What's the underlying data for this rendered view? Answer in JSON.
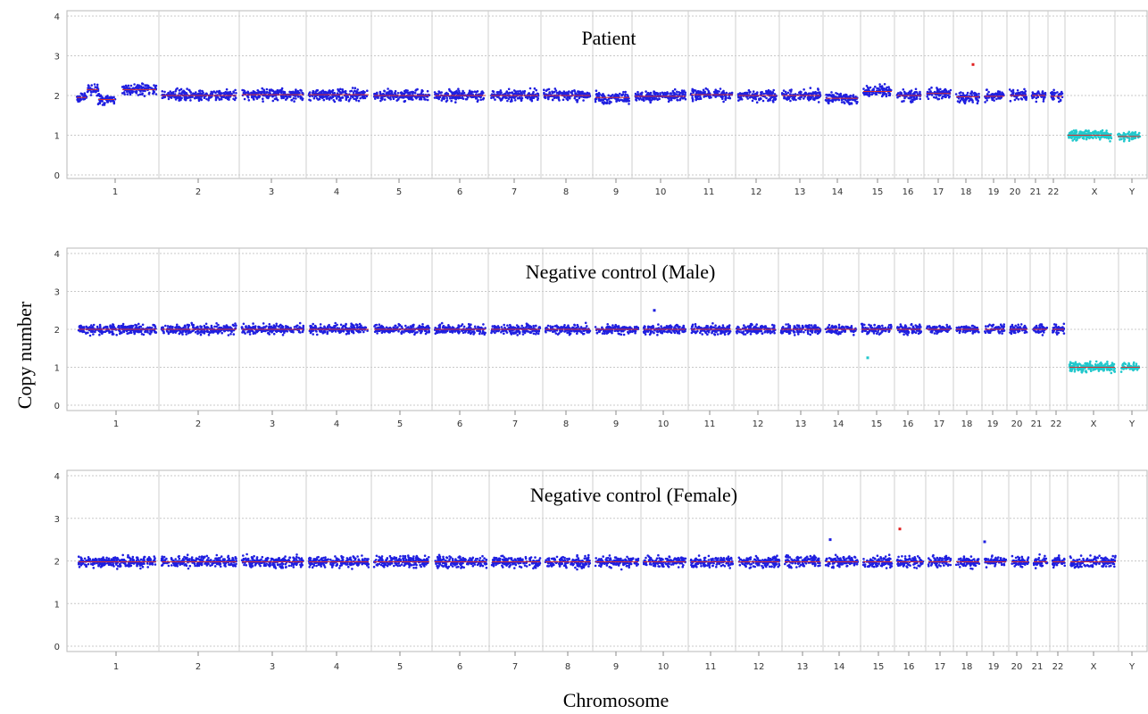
{
  "figure": {
    "ylabel": "Copy number",
    "xlabel": "Chromosome"
  },
  "chart_data": [
    {
      "type": "scatter",
      "title": "Patient",
      "ylim": [
        0,
        4
      ],
      "y_ticks": [
        "0",
        "1",
        "2",
        "3",
        "4"
      ],
      "x_tick_labels": [
        "1",
        "2",
        "3",
        "4",
        "5",
        "6",
        "7",
        "8",
        "9",
        "10",
        "11",
        "12",
        "13",
        "14",
        "15",
        "16",
        "17",
        "18",
        "19",
        "20",
        "21",
        "22",
        "X",
        "Y"
      ],
      "grid": true,
      "series": [
        {
          "color": "#1f1fe0",
          "marker": "dot",
          "segments": [
            {
              "chr": "1",
              "from": 0.0,
              "to": 0.5,
              "y": 1.95
            },
            {
              "chr": "1",
              "from": 0.5,
              "to": 0.62,
              "y": 2.15
            },
            {
              "chr": "1",
              "from": 0.62,
              "to": 1.0,
              "y": 1.9
            },
            {
              "chr": "1",
              "from": 1.0,
              "to": 1.0,
              "y": 1.95
            },
            {
              "chr": "2",
              "y": 2.15
            },
            {
              "chr": "3",
              "y": 2.02
            },
            {
              "chr": "4",
              "y": 2.02
            },
            {
              "chr": "5",
              "y": 2.02
            },
            {
              "chr": "6",
              "y": 2.0
            },
            {
              "chr": "7",
              "y": 2.0
            },
            {
              "chr": "8",
              "y": 2.0
            },
            {
              "chr": "9",
              "y": 2.02
            },
            {
              "chr": "10",
              "y": 1.93
            },
            {
              "chr": "11",
              "y": 2.0
            },
            {
              "chr": "12",
              "y": 2.02
            },
            {
              "chr": "13",
              "y": 2.0
            },
            {
              "chr": "14",
              "y": 2.02
            },
            {
              "chr": "15",
              "y": 1.92
            },
            {
              "chr": "16",
              "y": 2.1
            },
            {
              "chr": "17",
              "y": 2.0
            },
            {
              "chr": "18",
              "y": 2.05
            },
            {
              "chr": "19",
              "y": 1.97
            },
            {
              "chr": "20",
              "y": 1.98
            },
            {
              "chr": "21",
              "y": 2.0
            },
            {
              "chr": "22",
              "y": 1.98
            }
          ]
        },
        {
          "color": "#22c8cc",
          "marker": "dot",
          "segments": [
            {
              "chr": "X",
              "y": 1.0
            },
            {
              "chr": "Y",
              "y": 0.97
            }
          ]
        }
      ],
      "outliers": [
        {
          "chr": "18",
          "y": 2.78,
          "color": "#e02020"
        }
      ]
    },
    {
      "type": "scatter",
      "title": "Negative control (Male)",
      "ylim": [
        0,
        4
      ],
      "y_ticks": [
        "0",
        "1",
        "2",
        "3",
        "4"
      ],
      "x_tick_labels": [
        "1",
        "2",
        "3",
        "4",
        "5",
        "6",
        "7",
        "8",
        "9",
        "10",
        "11",
        "12",
        "13",
        "14",
        "15",
        "16",
        "17",
        "18",
        "19",
        "20",
        "21",
        "22",
        "X",
        "Y"
      ],
      "grid": true,
      "series": [
        {
          "color": "#1f1fe0",
          "marker": "dot",
          "autosomes_y": 2.0
        },
        {
          "color": "#22c8cc",
          "marker": "dot",
          "segments": [
            {
              "chr": "X",
              "y": 1.0
            },
            {
              "chr": "Y",
              "y": 1.0
            }
          ]
        }
      ],
      "outliers": [
        {
          "chr": "15",
          "y": 1.25,
          "color": "#22c8cc"
        },
        {
          "chr": "10",
          "y": 2.5,
          "color": "#1f1fe0"
        }
      ]
    },
    {
      "type": "scatter",
      "title": "Negative control (Female)",
      "ylim": [
        0,
        4
      ],
      "y_ticks": [
        "0",
        "1",
        "2",
        "3",
        "4"
      ],
      "x_tick_labels": [
        "1",
        "2",
        "3",
        "4",
        "5",
        "6",
        "7",
        "8",
        "9",
        "10",
        "11",
        "12",
        "13",
        "14",
        "15",
        "16",
        "17",
        "18",
        "19",
        "20",
        "21",
        "22",
        "X",
        "Y"
      ],
      "grid": true,
      "series": [
        {
          "color": "#1f1fe0",
          "marker": "dot",
          "autosomes_y": 1.98,
          "x_y": 1.98
        }
      ],
      "outliers": [
        {
          "chr": "16",
          "y": 2.75,
          "color": "#e02020"
        },
        {
          "chr": "14",
          "y": 2.5,
          "color": "#1f1fe0"
        },
        {
          "chr": "19",
          "y": 2.45,
          "color": "#1f1fe0"
        }
      ]
    }
  ]
}
